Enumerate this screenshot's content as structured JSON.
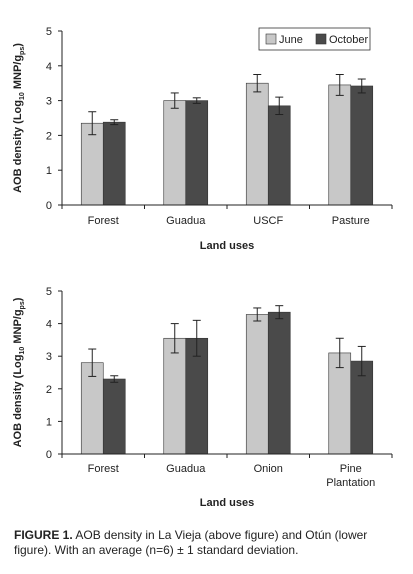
{
  "caption": {
    "label": "FIGURE 1.",
    "text": " AOB density in La Vieja (above figure) and Otún (lower figure). With an average (n=6) ± 1 standard deviation."
  },
  "colors": {
    "june": "#c8c8c8",
    "october": "#4a4a4a"
  },
  "chart_data": [
    {
      "type": "bar",
      "categories": [
        "Forest",
        "Guadua",
        "USCF",
        "Pasture"
      ],
      "series": [
        {
          "name": "June",
          "values": [
            2.35,
            3.0,
            3.5,
            3.45
          ],
          "errors": [
            0.33,
            0.22,
            0.25,
            0.3
          ]
        },
        {
          "name": "October",
          "values": [
            2.38,
            3.0,
            2.85,
            3.42
          ],
          "errors": [
            0.07,
            0.08,
            0.25,
            0.2
          ]
        }
      ],
      "title": "",
      "xlabel": "Land uses",
      "ylabel": {
        "pre": "AOB density (Log",
        "sub1": "10",
        "mid": " MNP/g",
        "sub2": "ps",
        "post": ")"
      },
      "ylim": [
        0,
        5
      ],
      "yticks": [
        0,
        1,
        2,
        3,
        4,
        5
      ],
      "legend": "top-right",
      "grid": false
    },
    {
      "type": "bar",
      "categories": [
        "Forest",
        "Guadua",
        "Onion",
        "Pine Plantation"
      ],
      "category_lines": [
        [
          "Forest"
        ],
        [
          "Guadua"
        ],
        [
          "Onion"
        ],
        [
          "Pine",
          "Plantation"
        ]
      ],
      "series": [
        {
          "name": "June",
          "values": [
            2.8,
            3.55,
            4.28,
            3.1
          ],
          "errors": [
            0.42,
            0.45,
            0.2,
            0.45
          ]
        },
        {
          "name": "October",
          "values": [
            2.3,
            3.55,
            4.35,
            2.85
          ],
          "errors": [
            0.1,
            0.55,
            0.2,
            0.45
          ]
        }
      ],
      "title": "",
      "xlabel": "Land uses",
      "ylabel": {
        "pre": "AOB density (Log",
        "sub1": "10",
        "mid": " MNP/g",
        "sub2": "ps",
        "post": ")"
      },
      "ylim": [
        0,
        5
      ],
      "yticks": [
        0,
        1,
        2,
        3,
        4,
        5
      ],
      "legend": "none",
      "grid": false
    }
  ]
}
